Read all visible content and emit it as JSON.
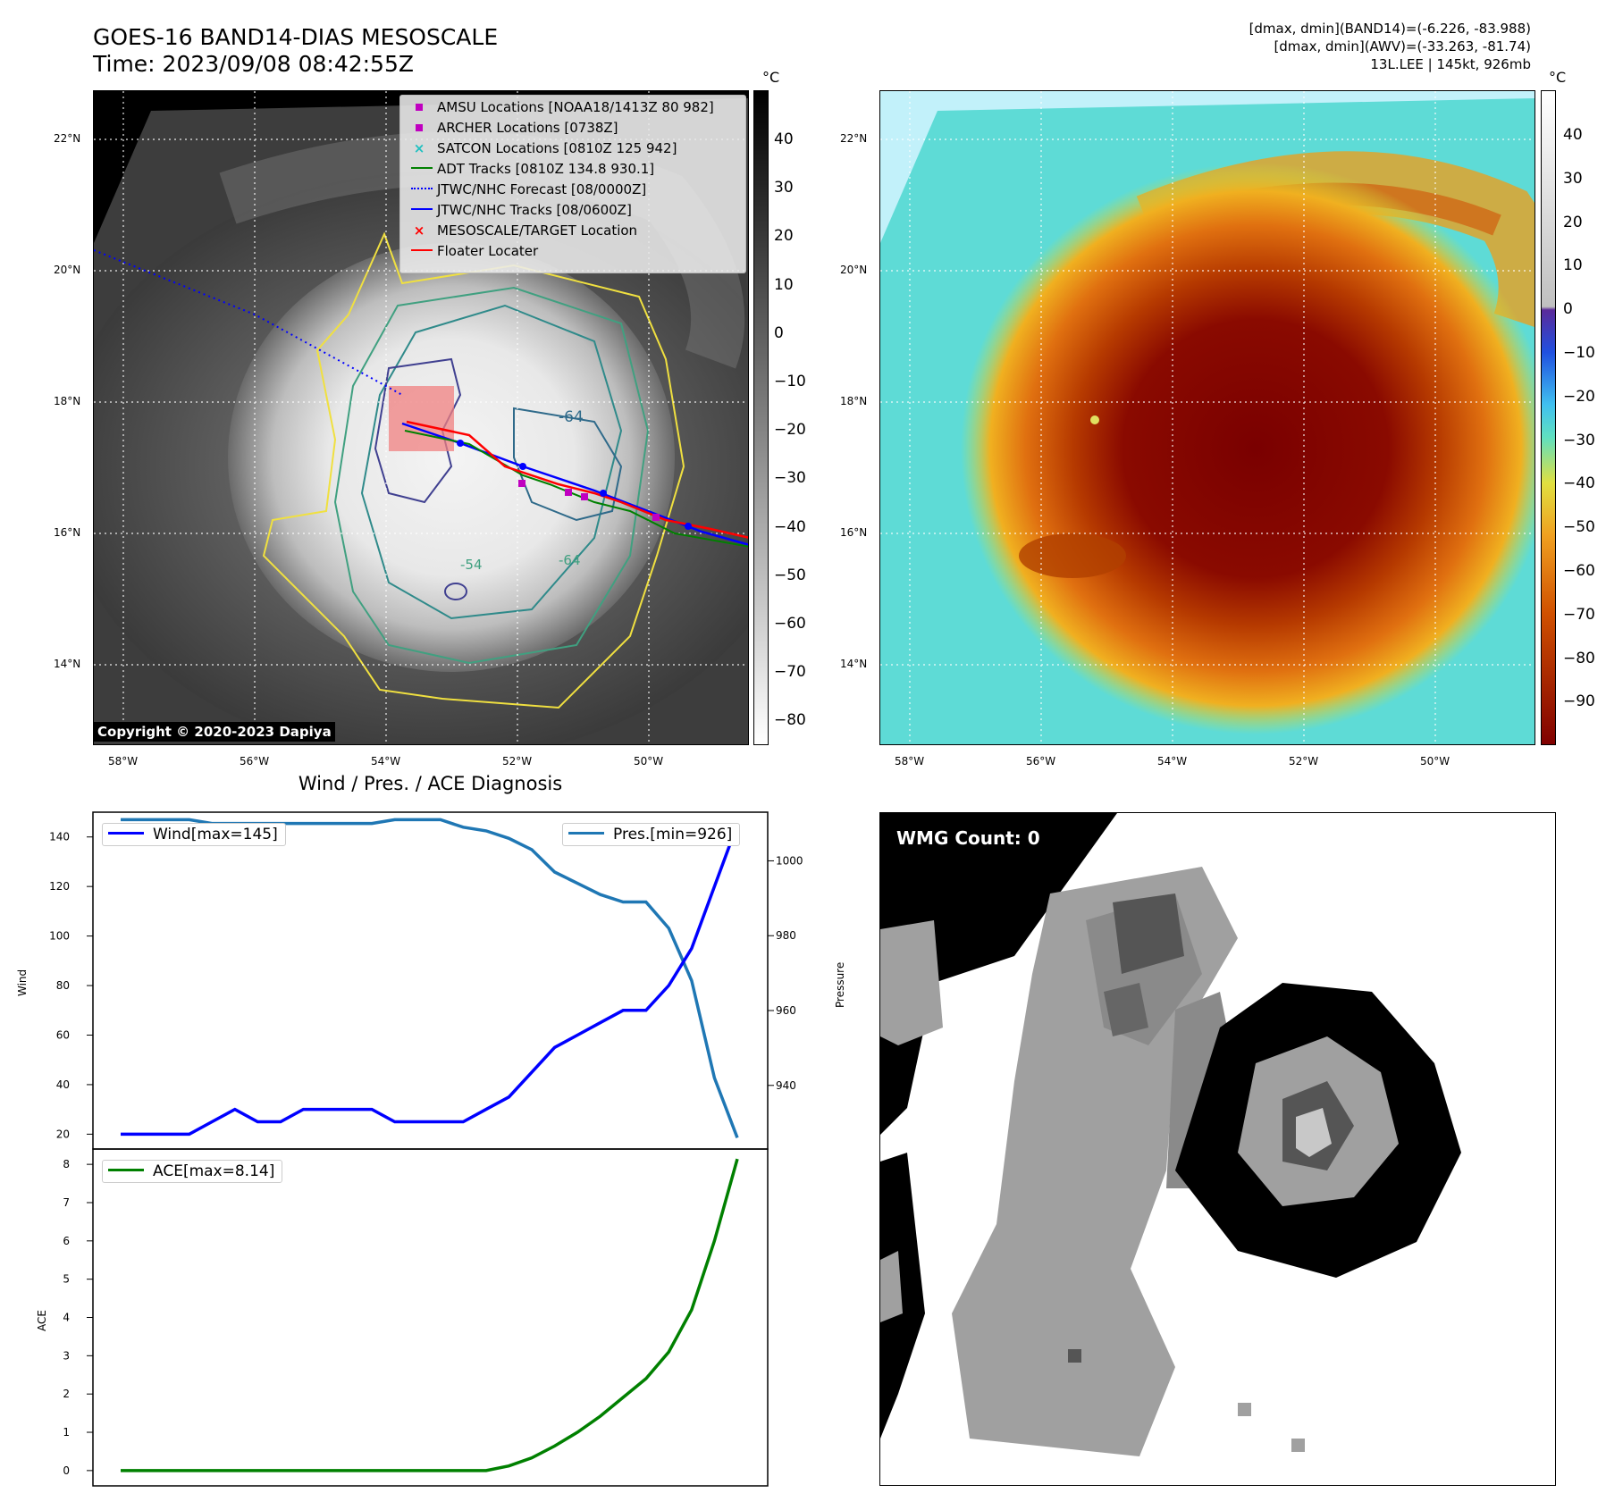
{
  "header": {
    "title_line1": "GOES-16 BAND14-DIAS MESOSCALE",
    "title_line2": "Time: 2023/09/08 08:42:55Z",
    "info_line1": "[dmax, dmin](BAND14)=(-6.226, -83.988)",
    "info_line2": "[dmax, dmin](AWV)=(-33.263, -81.74)",
    "info_line3": "13L.LEE | 145kt, 926mb"
  },
  "maps": {
    "lat_labels": [
      "22°N",
      "20°N",
      "18°N",
      "16°N",
      "14°N"
    ],
    "lon_labels": [
      "58°W",
      "56°W",
      "54°W",
      "52°W",
      "50°W"
    ],
    "copyright": "Copyright © 2020-2023 Dapiya",
    "contour_labels": [
      "-64",
      "-54",
      "-64"
    ],
    "legend": [
      {
        "label": "AMSU Locations [NOAA18/1413Z 80 982]",
        "marker": "square",
        "color": "#c000c0"
      },
      {
        "label": "ARCHER Locations [0738Z]",
        "marker": "square",
        "color": "#c000c0"
      },
      {
        "label": "SATCON Locations [0810Z 125 942]",
        "marker": "x",
        "color": "#20c0c0"
      },
      {
        "label": "ADT Tracks [0810Z 134.8 930.1]",
        "marker": "line",
        "color": "#008000"
      },
      {
        "label": "JTWC/NHC Forecast [08/0000Z]",
        "marker": "dotted",
        "color": "#0000ff"
      },
      {
        "label": "JTWC/NHC Tracks [08/0600Z]",
        "marker": "line-dot",
        "color": "#0000ff"
      },
      {
        "label": "MESOSCALE/TARGET Location",
        "marker": "x",
        "color": "#ff0000"
      },
      {
        "label": "Floater Locater",
        "marker": "line",
        "color": "#ff0000"
      }
    ],
    "left_colorbar": {
      "unit": "°C",
      "ticks": [
        "40",
        "30",
        "20",
        "10",
        "0",
        "−10",
        "−20",
        "−30",
        "−40",
        "−50",
        "−60",
        "−70",
        "−80"
      ]
    },
    "right_colorbar": {
      "unit": "°C",
      "ticks": [
        "40",
        "30",
        "20",
        "10",
        "0",
        "−10",
        "−20",
        "−30",
        "−40",
        "−50",
        "−60",
        "−70",
        "−80",
        "−90"
      ]
    }
  },
  "diagnosis": {
    "title": "Wind / Pres. / ACE Diagnosis",
    "wind_ylabel": "Wind",
    "pres_ylabel": "Pressure",
    "ace_ylabel": "ACE",
    "wind_legend": "Wind[max=145]",
    "pres_legend": "Pres.[min=926]",
    "ace_legend": "ACE[max=8.14]",
    "wind_color": "#0000ff",
    "pres_color": "#1f77b4",
    "ace_color": "#008000"
  },
  "wmg": {
    "label": "WMG Count: 0"
  },
  "chart_data": [
    {
      "type": "line",
      "title": "Wind / Pres. / ACE Diagnosis",
      "ylabel": "Wind",
      "ylim": [
        14,
        150
      ],
      "yticks": [
        20,
        40,
        60,
        80,
        100,
        120,
        140
      ],
      "series": [
        {
          "name": "Wind[max=145]",
          "values": [
            20,
            20,
            20,
            20,
            25,
            30,
            25,
            25,
            30,
            30,
            30,
            30,
            25,
            25,
            25,
            25,
            30,
            35,
            45,
            55,
            60,
            65,
            70,
            70,
            80,
            95,
            120,
            145
          ]
        }
      ]
    },
    {
      "type": "line",
      "ylabel": "Pressure",
      "ylim": [
        923,
        1013
      ],
      "yticks": [
        940,
        960,
        980,
        1000
      ],
      "series": [
        {
          "name": "Pres.[min=926]",
          "values": [
            1011,
            1011,
            1011,
            1011,
            1010,
            1010,
            1010,
            1010,
            1010,
            1010,
            1010,
            1010,
            1011,
            1011,
            1011,
            1009,
            1008,
            1006,
            1003,
            997,
            994,
            991,
            989,
            989,
            982,
            968,
            942,
            926
          ]
        }
      ]
    },
    {
      "type": "line",
      "ylabel": "ACE",
      "ylim": [
        -0.4,
        8.4
      ],
      "yticks": [
        0,
        1,
        2,
        3,
        4,
        5,
        6,
        7,
        8
      ],
      "series": [
        {
          "name": "ACE[max=8.14]",
          "values": [
            0,
            0,
            0,
            0,
            0,
            0,
            0,
            0,
            0,
            0,
            0,
            0,
            0,
            0,
            0,
            0,
            0,
            0.12,
            0.33,
            0.64,
            1.0,
            1.42,
            1.91,
            2.4,
            3.1,
            4.2,
            6.0,
            8.14
          ]
        }
      ]
    }
  ]
}
